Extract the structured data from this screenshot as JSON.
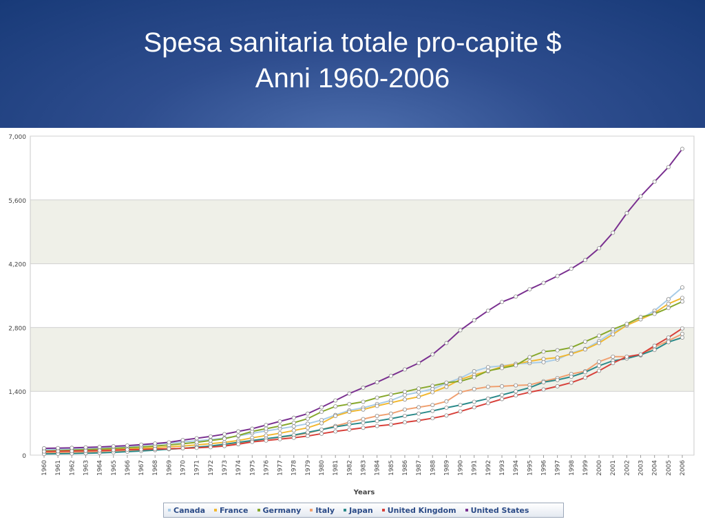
{
  "title": {
    "line1": "Spesa sanitaria totale pro-capite $",
    "line2": "Anni 1960-2006"
  },
  "chart_data": {
    "type": "line",
    "xlabel": "Years",
    "ylabel": "",
    "ylim": [
      0,
      7000
    ],
    "yticks": [
      "0",
      "1,400",
      "2,800",
      "4,200",
      "5,600",
      "7,000"
    ],
    "grid": "horizontal alternating bands",
    "legend_position": "bottom",
    "x": [
      1960,
      1961,
      1962,
      1963,
      1964,
      1965,
      1966,
      1967,
      1968,
      1969,
      1970,
      1971,
      1972,
      1973,
      1974,
      1975,
      1976,
      1977,
      1978,
      1979,
      1980,
      1981,
      1982,
      1983,
      1984,
      1985,
      1986,
      1987,
      1988,
      1989,
      1990,
      1991,
      1992,
      1993,
      1994,
      1995,
      1996,
      1997,
      1998,
      1999,
      2000,
      2001,
      2002,
      2003,
      2004,
      2005,
      2006
    ],
    "series": [
      {
        "name": "Canada",
        "color": "#a8cce8",
        "values": [
          120,
          130,
          140,
          150,
          165,
          180,
          195,
          215,
          240,
          265,
          290,
          315,
          340,
          375,
          420,
          480,
          530,
          580,
          630,
          690,
          770,
          880,
          980,
          1040,
          1120,
          1200,
          1320,
          1380,
          1450,
          1580,
          1690,
          1840,
          1930,
          1960,
          2000,
          2020,
          2040,
          2100,
          2240,
          2330,
          2500,
          2700,
          2850,
          2990,
          3170,
          3420,
          3680
        ]
      },
      {
        "name": "France",
        "color": "#f2b830",
        "values": [
          75,
          80,
          90,
          100,
          110,
          120,
          135,
          150,
          165,
          185,
          200,
          225,
          250,
          280,
          320,
          380,
          430,
          480,
          540,
          600,
          700,
          860,
          950,
          1000,
          1080,
          1150,
          1220,
          1280,
          1380,
          1500,
          1660,
          1760,
          1840,
          1940,
          2000,
          2060,
          2110,
          2140,
          2220,
          2320,
          2460,
          2650,
          2850,
          2980,
          3120,
          3320,
          3450
        ]
      },
      {
        "name": "Germany",
        "color": "#86a82a",
        "values": [
          90,
          100,
          110,
          120,
          135,
          150,
          165,
          180,
          200,
          225,
          250,
          280,
          320,
          360,
          430,
          520,
          580,
          640,
          710,
          800,
          950,
          1070,
          1120,
          1170,
          1260,
          1330,
          1390,
          1460,
          1520,
          1590,
          1620,
          1710,
          1850,
          1910,
          1970,
          2150,
          2270,
          2300,
          2360,
          2490,
          2620,
          2760,
          2880,
          3030,
          3100,
          3230,
          3370
        ]
      },
      {
        "name": "Italy",
        "color": "#f0a070",
        "values": [
          50,
          55,
          60,
          70,
          80,
          90,
          100,
          110,
          120,
          135,
          150,
          170,
          190,
          220,
          260,
          310,
          360,
          390,
          430,
          480,
          560,
          640,
          720,
          790,
          860,
          910,
          1000,
          1050,
          1100,
          1180,
          1380,
          1450,
          1500,
          1510,
          1530,
          1540,
          1620,
          1690,
          1780,
          1840,
          2050,
          2160,
          2160,
          2190,
          2370,
          2510,
          2660
        ]
      },
      {
        "name": "Japan",
        "color": "#2a8a8a",
        "values": [
          25,
          30,
          35,
          40,
          50,
          60,
          75,
          90,
          110,
          130,
          150,
          175,
          200,
          240,
          280,
          320,
          360,
          400,
          440,
          500,
          560,
          620,
          670,
          710,
          750,
          800,
          860,
          910,
          970,
          1040,
          1100,
          1170,
          1240,
          1320,
          1400,
          1480,
          1600,
          1650,
          1720,
          1820,
          1960,
          2070,
          2120,
          2200,
          2310,
          2480,
          2580
        ]
      },
      {
        "name": "United Kingdom",
        "color": "#d8403a",
        "values": [
          80,
          85,
          90,
          95,
          100,
          110,
          120,
          125,
          135,
          140,
          150,
          160,
          175,
          200,
          240,
          290,
          320,
          350,
          380,
          420,
          470,
          520,
          560,
          600,
          640,
          670,
          720,
          760,
          810,
          870,
          960,
          1050,
          1140,
          1230,
          1310,
          1380,
          1440,
          1510,
          1590,
          1700,
          1850,
          2020,
          2160,
          2210,
          2400,
          2580,
          2780
        ]
      },
      {
        "name": "United States",
        "color": "#7a3090",
        "values": [
          150,
          155,
          160,
          170,
          180,
          195,
          210,
          230,
          255,
          280,
          330,
          370,
          410,
          460,
          520,
          580,
          660,
          740,
          820,
          910,
          1050,
          1200,
          1350,
          1480,
          1600,
          1740,
          1880,
          2020,
          2210,
          2460,
          2740,
          2960,
          3170,
          3360,
          3480,
          3640,
          3780,
          3930,
          4090,
          4280,
          4540,
          4880,
          5310,
          5680,
          6000,
          6320,
          6720
        ]
      }
    ]
  }
}
